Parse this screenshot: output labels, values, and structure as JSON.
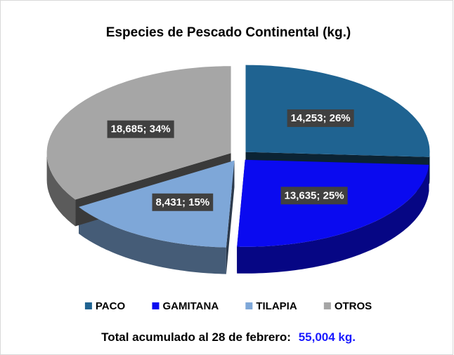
{
  "chart_data": {
    "type": "pie3d",
    "title": "Especies de Pescado Continental (kg.)",
    "categories": [
      "PACO",
      "GAMITANA",
      "TILAPIA",
      "OTROS"
    ],
    "values": [
      14253,
      13635,
      8431,
      18685
    ],
    "value_labels": [
      "14,253; 26%",
      "13,635; 25%",
      "8,431; 15%",
      "18,685; 34%"
    ],
    "colors": [
      "#1f6391",
      "#0a0af0",
      "#7ea7d8",
      "#a6a6a6"
    ],
    "legend": "bottom",
    "footer": {
      "text": "Total acumulado al 28 de febrero:",
      "total": "55,004 kg."
    }
  }
}
